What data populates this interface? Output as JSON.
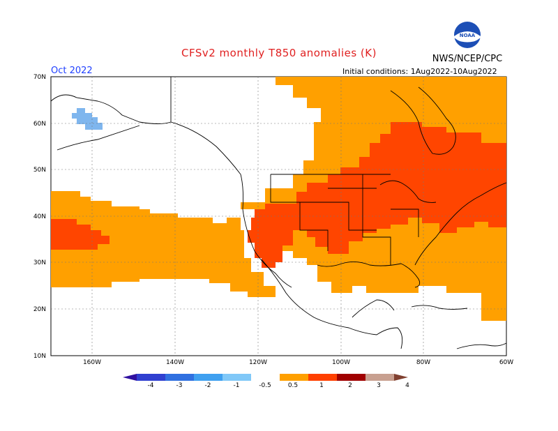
{
  "header": {
    "title": "CFSv2 monthly T850 anomalies (K)",
    "center": "NWS/NCEP/CPC",
    "logo_text": "NOAA",
    "month": "Oct 2022",
    "initial_conditions": "Initial conditions: 1Aug2022-10Aug2022"
  },
  "map": {
    "lat_labels": [
      "70N",
      "60N",
      "50N",
      "40N",
      "30N",
      "20N",
      "10N"
    ],
    "lon_labels": [
      "160W",
      "140W",
      "120W",
      "100W",
      "80W",
      "60W"
    ]
  },
  "colorbar": {
    "labels": [
      "-4",
      "-3",
      "-2",
      "-1",
      "-0.5",
      "0.5",
      "1",
      "2",
      "3",
      "4"
    ],
    "colors": [
      "#3010a0",
      "#3040d0",
      "#3070e0",
      "#3fa0f0",
      "#80c8f8",
      "#ffffff",
      "#ffa000",
      "#ff4000",
      "#a00000",
      "#c8a090",
      "#804030"
    ]
  },
  "colors": {
    "anom_0_5_1": "#ffa000",
    "anom_1_2": "#ff4000",
    "anom_neg_0_5_1": "#7fb6ee"
  }
}
